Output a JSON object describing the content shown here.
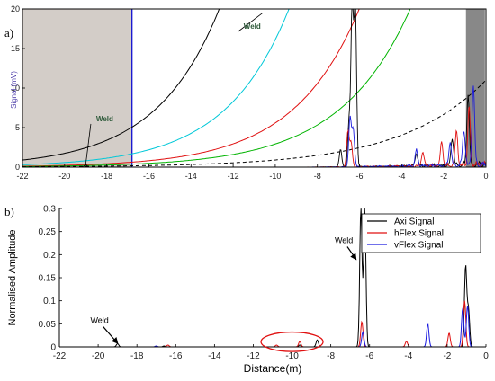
{
  "figure": {
    "panel_a_label": "a)",
    "panel_b_label": "b)"
  },
  "colors": {
    "axi": "#000000",
    "hflex": "#e01010",
    "vflex": "#1a1adf",
    "gate_fill": "#d3cdc8",
    "gate_line": "#0000d0",
    "right_fill": "#888888",
    "dac_cyan": "#00c8d8",
    "dac_red": "#e01010",
    "dac_green": "#00b400",
    "weld_annotation_text": "#2e5a3a",
    "highlight_ellipse": "#e01010"
  },
  "chart_data": [
    {
      "type": "line",
      "panel": "a)",
      "ylabel": "Signal (mV)",
      "xlim": [
        -22,
        0
      ],
      "ylim": [
        0,
        20
      ],
      "xticks": [
        -22,
        -20,
        -18,
        -16,
        -14,
        -12,
        -10,
        -8,
        -6,
        -4,
        -2,
        0
      ],
      "yticks": [
        0,
        5,
        10,
        15,
        20
      ],
      "grid": false,
      "shaded_regions": [
        {
          "x": [
            -22,
            -16.8
          ],
          "color": "gate_fill"
        },
        {
          "x": [
            -0.95,
            -0.05
          ],
          "color": "right_fill"
        }
      ],
      "vertical_lines": [
        {
          "x": -16.8,
          "color": "gate_line"
        }
      ],
      "threshold_curves": [
        {
          "color": "axi",
          "style": "solid",
          "y0": 0.9,
          "k": 0.332
        },
        {
          "color": "dac_cyan",
          "style": "solid",
          "y0": 0.3,
          "k": 0.332
        },
        {
          "color": "dac_red",
          "style": "solid",
          "y0": 0.12,
          "k": 0.32
        },
        {
          "color": "dac_green",
          "style": "solid",
          "y0": 0.08,
          "k": 0.3
        },
        {
          "color": "axi",
          "style": "dashed",
          "y0": 0.045,
          "k": 0.25
        }
      ],
      "series": [
        {
          "color": "axi",
          "peaks": [
            [
              -19,
              0.3
            ],
            [
              -6.9,
              2.2
            ],
            [
              -6.5,
              5.5
            ],
            [
              -6.35,
              20
            ],
            [
              -6.2,
              20
            ],
            [
              -3.3,
              1.6
            ],
            [
              -1.6,
              3.5
            ],
            [
              -0.85,
              9.0
            ]
          ]
        },
        {
          "color": "hflex",
          "peaks": [
            [
              -6.55,
              4.5
            ],
            [
              -6.4,
              3.0
            ],
            [
              -3.0,
              1.8
            ],
            [
              -2.1,
              2.9
            ],
            [
              -1.4,
              4.4
            ],
            [
              -0.8,
              7.3
            ]
          ]
        },
        {
          "color": "vflex",
          "peaks": [
            [
              -6.45,
              6.2
            ],
            [
              -6.3,
              4.7
            ],
            [
              -3.3,
              2.0
            ],
            [
              -1.7,
              3.0
            ],
            [
              -1.05,
              4.5
            ],
            [
              -0.6,
              10.0
            ]
          ]
        }
      ],
      "annotations": [
        {
          "text": "Weld",
          "x": -18.5,
          "y": 5.8,
          "target": [
            -19.0,
            0.3
          ]
        },
        {
          "text": "Weld",
          "x": -11.5,
          "y": 17.5,
          "target": [
            -10.6,
            19.5
          ]
        }
      ]
    },
    {
      "type": "line",
      "panel": "b)",
      "xlabel": "Distance(m)",
      "ylabel": "Normalised Amplitude",
      "xlim": [
        -22,
        0
      ],
      "ylim": [
        0,
        0.3
      ],
      "xticks": [
        -22,
        -20,
        -18,
        -16,
        -14,
        -12,
        -10,
        -8,
        -6,
        -4,
        -2,
        0
      ],
      "yticks": [
        0,
        0.05,
        0.1,
        0.15,
        0.2,
        0.25,
        0.3
      ],
      "grid": false,
      "legend": {
        "position": "top-right",
        "entries": [
          "Axi Signal",
          "hFlex Signal",
          "vFlex Signal"
        ]
      },
      "series": [
        {
          "name": "Axi Signal",
          "color": "axi",
          "peaks": [
            [
              -19.0,
              0.007
            ],
            [
              -16.6,
              0.002
            ],
            [
              -9.6,
              0.004
            ],
            [
              -8.7,
              0.015
            ],
            [
              -6.45,
              0.3
            ],
            [
              -6.25,
              0.3
            ],
            [
              -1.05,
              0.175
            ],
            [
              -0.9,
              0.08
            ]
          ]
        },
        {
          "name": "hFlex Signal",
          "color": "hflex",
          "peaks": [
            [
              -16.4,
              0.004
            ],
            [
              -10.8,
              0.004
            ],
            [
              -9.6,
              0.012
            ],
            [
              -6.4,
              0.055
            ],
            [
              -4.1,
              0.012
            ],
            [
              -1.9,
              0.03
            ],
            [
              -1.1,
              0.1
            ]
          ]
        },
        {
          "name": "vFlex Signal",
          "color": "vflex",
          "peaks": [
            [
              -17.0,
              0.002
            ],
            [
              -6.35,
              0.032
            ],
            [
              -3.0,
              0.05
            ],
            [
              -1.2,
              0.085
            ],
            [
              -0.95,
              0.09
            ]
          ]
        }
      ],
      "annotations": [
        {
          "text": "Weld",
          "x": -20.4,
          "y": 0.052,
          "target": [
            -19.0,
            0.008
          ]
        },
        {
          "text": "Weld",
          "x": -7.8,
          "y": 0.225,
          "target": [
            -6.7,
            0.19
          ]
        }
      ],
      "highlight": {
        "shape": "ellipse",
        "x_range": [
          -11.6,
          -8.4
        ],
        "y_range": [
          -0.01,
          0.032
        ]
      }
    }
  ]
}
